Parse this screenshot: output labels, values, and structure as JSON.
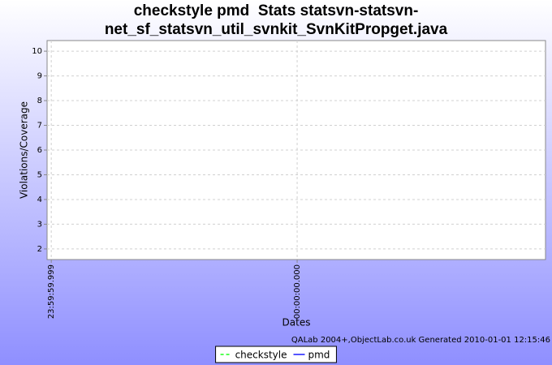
{
  "chart_data": {
    "type": "line",
    "title": [
      "checkstyle pmd  Stats statsvn-statsvn-",
      "net_sf_statsvn_util_svnkit_SvnKitPropget.java"
    ],
    "xlabel": "Dates",
    "ylabel": "Violations/Coverage",
    "x": [],
    "series": [
      {
        "name": "checkstyle",
        "color": "#55ff55",
        "dash": true,
        "values": []
      },
      {
        "name": "pmd",
        "color": "#5555ff",
        "dash": false,
        "values": []
      }
    ],
    "xlim": [
      -0.017,
      2.01
    ],
    "xticks": [
      {
        "value": 0,
        "label": "23:59:59.999"
      },
      {
        "value": 1,
        "label": "00:00:00.000"
      }
    ],
    "ylim": [
      1.57,
      10.43
    ],
    "yticks": [
      2,
      3,
      4,
      5,
      6,
      7,
      8,
      9,
      10
    ],
    "grid": true,
    "legend": "bottom",
    "footer": "QALab 2004+,ObjectLab.co.uk Generated 2010-01-01 12:15:46"
  }
}
